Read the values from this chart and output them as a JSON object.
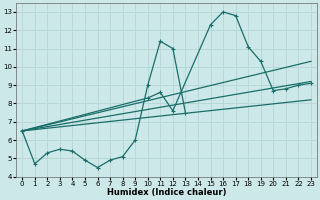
{
  "xlabel": "Humidex (Indice chaleur)",
  "background_color": "#cce8e8",
  "grid_color": "#b8d8d8",
  "line_color": "#1a6e6a",
  "xlim": [
    -0.5,
    23.5
  ],
  "ylim": [
    4,
    13.5
  ],
  "xticks": [
    0,
    1,
    2,
    3,
    4,
    5,
    6,
    7,
    8,
    9,
    10,
    11,
    12,
    13,
    14,
    15,
    16,
    17,
    18,
    19,
    20,
    21,
    22,
    23
  ],
  "yticks": [
    4,
    5,
    6,
    7,
    8,
    9,
    10,
    11,
    12,
    13
  ],
  "series1": [
    [
      0,
      6.5
    ],
    [
      1,
      4.7
    ],
    [
      2,
      5.3
    ],
    [
      3,
      5.5
    ],
    [
      4,
      5.4
    ],
    [
      5,
      4.9
    ],
    [
      6,
      4.5
    ],
    [
      7,
      4.9
    ],
    [
      8,
      5.1
    ],
    [
      9,
      6.0
    ],
    [
      10,
      9.0
    ],
    [
      11,
      11.4
    ],
    [
      12,
      11.0
    ],
    [
      13,
      7.5
    ]
  ],
  "series2": [
    [
      0,
      6.5
    ],
    [
      10,
      8.3
    ],
    [
      11,
      8.6
    ],
    [
      12,
      7.6
    ],
    [
      15,
      12.3
    ],
    [
      16,
      13.0
    ],
    [
      17,
      12.8
    ],
    [
      18,
      11.1
    ],
    [
      19,
      10.3
    ],
    [
      20,
      8.7
    ],
    [
      21,
      8.8
    ],
    [
      22,
      9.0
    ],
    [
      23,
      9.1
    ]
  ],
  "series3_trend": [
    [
      0,
      6.5
    ],
    [
      23,
      10.3
    ]
  ],
  "series4_trend": [
    [
      0,
      6.5
    ],
    [
      23,
      9.2
    ]
  ],
  "series5_trend": [
    [
      0,
      6.5
    ],
    [
      23,
      8.2
    ]
  ]
}
